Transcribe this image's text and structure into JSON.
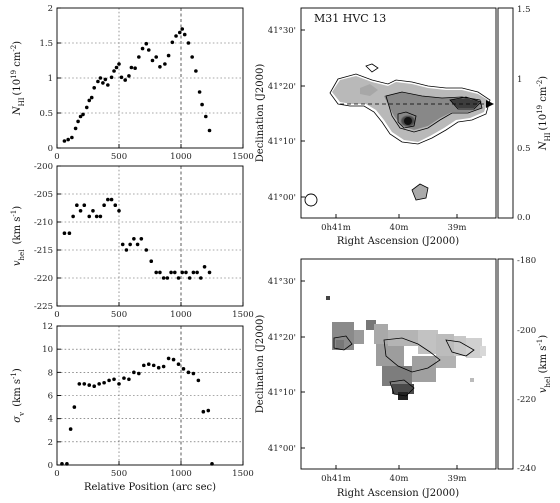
{
  "chart_data": [
    {
      "type": "scatter",
      "ylabel_main": "N",
      "ylabel_sub": "HI",
      "ylabel_unit": "(10",
      "ylabel_unit_sup": "19",
      "ylabel_unit_end": " cm",
      "ylabel_unit_sup2": "-2",
      "ylabel_close": ")",
      "xlim": [
        0,
        1500
      ],
      "ylim": [
        0,
        2
      ],
      "yticks": [
        "0",
        "0.5",
        "1",
        "1.5",
        "2"
      ],
      "ytick_values": [
        0,
        0.5,
        1,
        1.5,
        2
      ],
      "xticks": [
        "0",
        "500",
        "1000",
        "1500"
      ],
      "xtick_values": [
        0,
        500,
        1000,
        1500
      ],
      "grid": "dotted",
      "x": [
        60,
        90,
        120,
        150,
        170,
        190,
        210,
        240,
        260,
        280,
        300,
        330,
        350,
        370,
        390,
        410,
        440,
        460,
        480,
        500,
        520,
        550,
        580,
        600,
        630,
        660,
        690,
        720,
        740,
        770,
        800,
        830,
        870,
        900,
        930,
        960,
        990,
        1010,
        1030,
        1060,
        1090,
        1120,
        1150,
        1170,
        1200,
        1230
      ],
      "y": [
        0.1,
        0.12,
        0.15,
        0.28,
        0.38,
        0.45,
        0.48,
        0.58,
        0.68,
        0.72,
        0.86,
        0.95,
        1.0,
        0.93,
        0.98,
        0.9,
        1.01,
        1.1,
        1.15,
        1.2,
        1.01,
        0.97,
        1.03,
        1.15,
        1.14,
        1.3,
        1.42,
        1.49,
        1.4,
        1.25,
        1.3,
        1.16,
        1.2,
        1.32,
        1.51,
        1.6,
        1.65,
        1.7,
        1.62,
        1.5,
        1.3,
        1.1,
        0.8,
        0.62,
        0.45,
        0.25
      ]
    },
    {
      "type": "scatter",
      "ylabel_main": "v",
      "ylabel_sub": "hel",
      "ylabel_unit": " (km s",
      "ylabel_unit_sup": "-1",
      "ylabel_close": ")",
      "xlim": [
        0,
        1500
      ],
      "ylim": [
        -225,
        -200
      ],
      "yticks": [
        "-200",
        "-205",
        "-210",
        "-215",
        "-220",
        "-225"
      ],
      "ytick_values": [
        -200,
        -205,
        -210,
        -215,
        -220,
        -225
      ],
      "xticks": [
        "0",
        "500",
        "1000",
        "1500"
      ],
      "xtick_values": [
        0,
        500,
        1000,
        1500
      ],
      "grid": "dotted",
      "x": [
        60,
        100,
        130,
        160,
        190,
        220,
        260,
        290,
        320,
        350,
        380,
        410,
        440,
        470,
        500,
        530,
        560,
        590,
        620,
        650,
        680,
        720,
        760,
        800,
        830,
        860,
        890,
        920,
        950,
        980,
        1010,
        1040,
        1070,
        1100,
        1130,
        1160,
        1190,
        1230
      ],
      "y": [
        -212,
        -212,
        -209,
        -207,
        -208,
        -207,
        -209,
        -208,
        -209,
        -209,
        -207,
        -206,
        -206,
        -207,
        -208,
        -214,
        -215,
        -214,
        -213,
        -214,
        -213,
        -215,
        -217,
        -219,
        -219,
        -220,
        -220,
        -219,
        -219,
        -220,
        -219,
        -219,
        -220,
        -219,
        -219,
        -220,
        -218,
        -219
      ]
    },
    {
      "type": "scatter",
      "ylabel_main": "σ",
      "ylabel_sub": "v",
      "ylabel_unit": " (km s",
      "ylabel_unit_sup": "-1",
      "ylabel_close": ")",
      "xlabel": "Relative Position (arc sec)",
      "xlim": [
        0,
        1500
      ],
      "ylim": [
        0,
        12
      ],
      "yticks": [
        "0",
        "2",
        "4",
        "6",
        "8",
        "10",
        "12"
      ],
      "ytick_values": [
        0,
        2,
        4,
        6,
        8,
        10,
        12
      ],
      "xticks": [
        "0",
        "500",
        "1000",
        "1500"
      ],
      "xtick_values": [
        0,
        500,
        1000,
        1500
      ],
      "grid": "dotted",
      "x": [
        40,
        80,
        110,
        140,
        180,
        220,
        260,
        300,
        340,
        380,
        420,
        460,
        500,
        540,
        580,
        620,
        660,
        700,
        740,
        780,
        820,
        860,
        900,
        940,
        980,
        1020,
        1060,
        1100,
        1140,
        1180,
        1220,
        1250
      ],
      "y": [
        0.1,
        0.1,
        3.1,
        5.0,
        7.0,
        7.0,
        6.9,
        6.8,
        7.0,
        7.1,
        7.3,
        7.4,
        7.0,
        7.5,
        7.4,
        8.0,
        7.9,
        8.6,
        8.7,
        8.6,
        8.4,
        8.5,
        9.2,
        9.1,
        8.7,
        8.3,
        8.0,
        7.9,
        7.3,
        4.6,
        4.7,
        0.1
      ]
    },
    {
      "type": "heatmap",
      "title": "M31 HVC 13",
      "xlabel": "Right Ascension (J2000)",
      "ylabel": "Declination (J2000)",
      "yticks": [
        "41°30'",
        "41°20'",
        "41°10'",
        "41°00'"
      ],
      "xticks": [
        "0h41m",
        "40m",
        "39m"
      ],
      "colorbar_label_main": "N",
      "colorbar_label_sub": "HI",
      "colorbar_label_unit": "(10",
      "colorbar_label_unit_sup": "19",
      "colorbar_label_unit_end": " cm",
      "colorbar_label_unit_sup2": "-2",
      "colorbar_label_close": ")",
      "colorbar_ticks": [
        "1.5",
        "1",
        "0.5",
        "0.0"
      ],
      "colorbar_range": [
        0.0,
        1.5
      ]
    },
    {
      "type": "heatmap",
      "xlabel": "Right Ascension (J2000)",
      "ylabel": "Declination (J2000)",
      "yticks": [
        "41°30'",
        "41°20'",
        "41°10'",
        "41°00'"
      ],
      "xticks": [
        "0h41m",
        "40m",
        "39m"
      ],
      "colorbar_label_main": "v",
      "colorbar_label_sub": "hel",
      "colorbar_label_unit": " (km s",
      "colorbar_label_unit_sup": "-1",
      "colorbar_label_close": ")",
      "colorbar_ticks": [
        "-180",
        "-200",
        "-220",
        "-240"
      ],
      "colorbar_range": [
        -240,
        -180
      ]
    }
  ]
}
